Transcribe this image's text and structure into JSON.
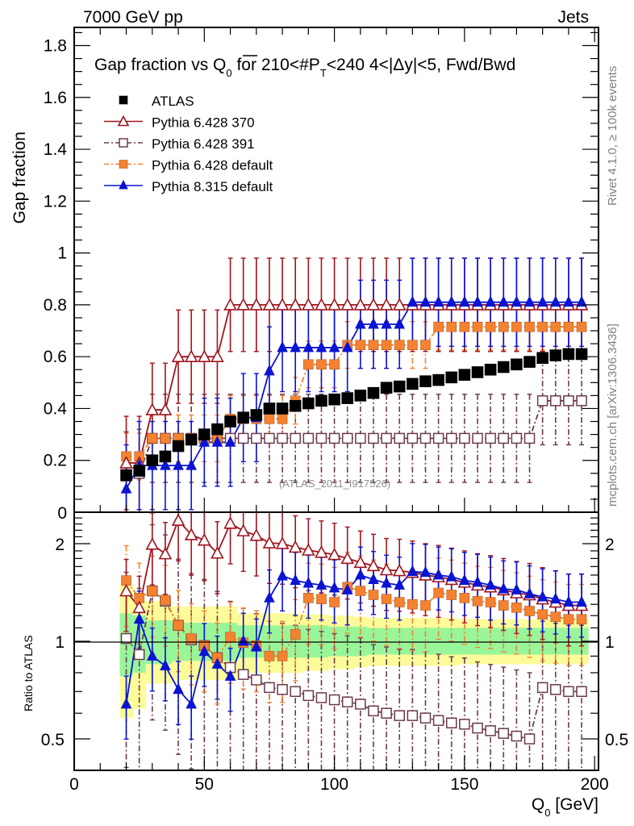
{
  "chart_data": {
    "type": "scatter",
    "header_left": "7000 GeV pp",
    "header_right": "Jets",
    "title": {
      "prefix": "Gap fraction vs Q",
      "prefix_sub": "0",
      "middle": " for 210<#P",
      "middle_sub": "T",
      "suffix": "<240  4<|Δy|<5, Fwd/Bwd"
    },
    "side_label_top": "Rivet 4.1.0, ≥ 100k events",
    "side_label_bottom": "mcplots.cern.ch [arXiv:1306.3436]",
    "analysis_label": "(ATLAS_2011_I917526)",
    "xlabel": {
      "main": "Q",
      "sub": "0",
      "unit": " [GeV]"
    },
    "ylabel_main": "Gap fraction",
    "ylabel_ratio": "Ratio to ATLAS",
    "xlim": [
      0,
      201.5
    ],
    "ylim_main": [
      0,
      1.87
    ],
    "ylim_ratio": [
      0.4,
      2.5
    ],
    "ratio_scale": "log",
    "grid": false,
    "legend_position": "top-left",
    "x_ticks": [
      0,
      50,
      100,
      150,
      200
    ],
    "y_ticks_main": [
      0.2,
      0.4,
      0.6,
      0.8,
      1,
      1.2,
      1.4,
      1.6,
      1.8
    ],
    "y_tick_labels_main": [
      "0.2",
      "0.4",
      "0.6",
      "0.8",
      "1",
      "1.2",
      "1.4",
      "1.6",
      "1.8"
    ],
    "y_ticks_ratio": [
      0.5,
      1,
      2
    ],
    "y_tick_labels_ratio": [
      "0.5",
      "1",
      "2"
    ],
    "x": [
      20,
      25,
      30,
      35,
      40,
      45,
      50,
      55,
      60,
      65,
      70,
      75,
      80,
      85,
      90,
      95,
      100,
      105,
      110,
      115,
      120,
      125,
      130,
      135,
      140,
      145,
      150,
      155,
      160,
      165,
      170,
      175,
      180,
      185,
      190,
      195
    ],
    "series": [
      {
        "name": "ATLAS",
        "color": "#000000",
        "marker": "filled-square",
        "line": "none",
        "values": [
          0.143,
          0.16,
          0.2,
          0.215,
          0.255,
          0.28,
          0.3,
          0.32,
          0.35,
          0.365,
          0.375,
          0.4,
          0.4,
          0.41,
          0.42,
          0.43,
          0.435,
          0.44,
          0.45,
          0.46,
          0.48,
          0.485,
          0.495,
          0.505,
          0.51,
          0.52,
          0.53,
          0.54,
          0.55,
          0.56,
          0.57,
          0.58,
          0.595,
          0.605,
          0.61,
          0.61
        ],
        "errors": 0.01
      },
      {
        "name": "Pythia 6.428 370",
        "color": "#a0141e",
        "marker": "open-triangle",
        "line": "solid",
        "values": [
          0.19,
          0.19,
          0.395,
          0.395,
          0.6,
          0.6,
          0.6,
          0.6,
          0.8,
          0.8,
          0.8,
          0.8,
          0.8,
          0.8,
          0.8,
          0.8,
          0.8,
          0.8,
          0.8,
          0.8,
          0.8,
          0.8,
          0.8,
          0.8,
          0.8,
          0.8,
          0.8,
          0.8,
          0.8,
          0.8,
          0.8,
          0.8,
          0.8,
          0.8,
          0.8,
          0.8
        ],
        "errors": 0.18,
        "ratio": [
          1.43,
          1.27,
          1.99,
          1.86,
          2.36,
          2.13,
          2.05,
          1.87,
          2.31,
          2.19,
          2.12,
          2.01,
          2.0,
          1.95,
          1.91,
          1.88,
          1.85,
          1.8,
          1.75,
          1.71,
          1.66,
          1.65,
          1.63,
          1.6,
          1.58,
          1.55,
          1.52,
          1.49,
          1.47,
          1.44,
          1.41,
          1.39,
          1.35,
          1.32,
          1.29,
          1.29
        ],
        "ratio_err_frac": 0.25
      },
      {
        "name": "Pythia 6.428 391",
        "color": "#6b3a4e",
        "marker": "open-square",
        "line": "dash-dot",
        "values": [
          0.14,
          0.15,
          0.285,
          0.285,
          0.285,
          0.285,
          0.285,
          0.285,
          0.285,
          0.285,
          0.285,
          0.285,
          0.285,
          0.285,
          0.285,
          0.285,
          0.285,
          0.285,
          0.285,
          0.285,
          0.285,
          0.285,
          0.285,
          0.285,
          0.285,
          0.285,
          0.285,
          0.285,
          0.285,
          0.285,
          0.285,
          0.285,
          0.43,
          0.43,
          0.43,
          0.43
        ],
        "errors": 0.17,
        "ratio": [
          1.02,
          0.91,
          1.43,
          1.33,
          1.12,
          1.01,
          0.97,
          0.89,
          0.83,
          0.79,
          0.76,
          0.72,
          0.71,
          0.7,
          0.68,
          0.67,
          0.66,
          0.65,
          0.64,
          0.61,
          0.6,
          0.59,
          0.59,
          0.58,
          0.57,
          0.56,
          0.555,
          0.54,
          0.53,
          0.52,
          0.51,
          0.5,
          0.72,
          0.71,
          0.7,
          0.7
        ],
        "ratio_err_frac": 0.6
      },
      {
        "name": "Pythia 6.428 default",
        "color": "#f58231",
        "marker": "filled-square",
        "line": "dash-dot",
        "values": [
          0.215,
          0.215,
          0.285,
          0.285,
          0.285,
          0.285,
          0.285,
          0.285,
          0.36,
          0.36,
          0.36,
          0.36,
          0.36,
          0.43,
          0.57,
          0.57,
          0.57,
          0.645,
          0.645,
          0.645,
          0.645,
          0.645,
          0.645,
          0.645,
          0.715,
          0.715,
          0.715,
          0.715,
          0.715,
          0.715,
          0.715,
          0.715,
          0.715,
          0.715,
          0.715,
          0.715
        ],
        "errors": 0.09,
        "ratio": [
          1.54,
          1.36,
          1.43,
          1.34,
          1.12,
          1.02,
          0.97,
          0.89,
          1.03,
          0.99,
          0.97,
          0.9,
          0.9,
          1.05,
          1.36,
          1.35,
          1.32,
          1.47,
          1.43,
          1.39,
          1.35,
          1.32,
          1.3,
          1.29,
          1.41,
          1.39,
          1.36,
          1.33,
          1.32,
          1.29,
          1.27,
          1.24,
          1.21,
          1.19,
          1.17,
          1.17
        ],
        "ratio_err_frac": 0.28
      },
      {
        "name": "Pythia 8.315 default",
        "color": "#0a14d2",
        "marker": "filled-triangle",
        "line": "solid",
        "values": [
          0.09,
          0.18,
          0.18,
          0.18,
          0.18,
          0.18,
          0.27,
          0.27,
          0.27,
          0.365,
          0.365,
          0.545,
          0.635,
          0.635,
          0.635,
          0.635,
          0.635,
          0.635,
          0.725,
          0.725,
          0.725,
          0.725,
          0.81,
          0.81,
          0.81,
          0.81,
          0.81,
          0.81,
          0.81,
          0.81,
          0.81,
          0.81,
          0.81,
          0.81,
          0.81,
          0.81
        ],
        "errors": 0.17,
        "ratio": [
          0.64,
          1.17,
          0.9,
          0.84,
          0.71,
          0.64,
          0.93,
          0.85,
          0.78,
          1.0,
          0.96,
          1.36,
          1.59,
          1.54,
          1.51,
          1.49,
          1.46,
          1.44,
          1.6,
          1.55,
          1.51,
          1.49,
          1.64,
          1.63,
          1.6,
          1.58,
          1.54,
          1.52,
          1.49,
          1.45,
          1.44,
          1.4,
          1.37,
          1.35,
          1.32,
          1.32
        ],
        "ratio_err_frac": 0.22
      }
    ],
    "ratio_bands": {
      "green_color": "#99f599",
      "yellow_color": "#fbfb9a",
      "green_low": [
        0.78,
        0.8,
        0.85,
        0.85,
        0.87,
        0.87,
        0.87,
        0.87,
        0.87,
        0.89,
        0.89,
        0.89,
        0.89,
        0.89,
        0.89,
        0.89,
        0.9,
        0.9,
        0.9,
        0.91,
        0.91,
        0.91,
        0.91,
        0.91,
        0.91,
        0.91,
        0.91,
        0.91,
        0.91,
        0.91,
        0.91,
        0.91,
        0.91,
        0.91,
        0.91,
        0.91
      ],
      "green_high": [
        1.22,
        1.2,
        1.16,
        1.16,
        1.14,
        1.14,
        1.14,
        1.14,
        1.14,
        1.12,
        1.12,
        1.12,
        1.12,
        1.12,
        1.12,
        1.12,
        1.11,
        1.11,
        1.11,
        1.1,
        1.1,
        1.1,
        1.1,
        1.1,
        1.1,
        1.1,
        1.1,
        1.1,
        1.1,
        1.1,
        1.1,
        1.1,
        1.1,
        1.1,
        1.1,
        1.1
      ],
      "yellow_low": [
        0.58,
        0.62,
        0.74,
        0.74,
        0.76,
        0.76,
        0.76,
        0.76,
        0.76,
        0.8,
        0.8,
        0.8,
        0.8,
        0.8,
        0.81,
        0.81,
        0.82,
        0.82,
        0.83,
        0.84,
        0.84,
        0.84,
        0.84,
        0.84,
        0.84,
        0.84,
        0.85,
        0.85,
        0.85,
        0.85,
        0.85,
        0.85,
        0.85,
        0.85,
        0.85,
        0.85
      ],
      "yellow_high": [
        1.49,
        1.33,
        1.33,
        1.33,
        1.28,
        1.28,
        1.28,
        1.28,
        1.28,
        1.22,
        1.22,
        1.22,
        1.22,
        1.22,
        1.21,
        1.21,
        1.2,
        1.2,
        1.19,
        1.18,
        1.18,
        1.18,
        1.18,
        1.18,
        1.18,
        1.18,
        1.17,
        1.17,
        1.17,
        1.17,
        1.17,
        1.17,
        1.17,
        1.17,
        1.17,
        1.17
      ]
    }
  }
}
